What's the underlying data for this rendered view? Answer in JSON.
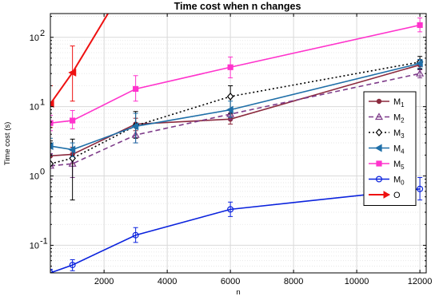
{
  "chart_data": {
    "type": "line",
    "title": "Time cost when n changes",
    "xlabel": "n",
    "ylabel": "Time cost (s)",
    "xlim": [
      300,
      12200
    ],
    "ylim": [
      0.04,
      220
    ],
    "yscale": "log",
    "grid": true,
    "legend_position": "right",
    "x_ticks": [
      "2000",
      "4000",
      "6000",
      "8000",
      "10000",
      "12000"
    ],
    "y_ticks": [
      {
        "base": "10",
        "exp": "-1"
      },
      {
        "base": "10",
        "exp": "0"
      },
      {
        "base": "10",
        "exp": "1"
      },
      {
        "base": "10",
        "exp": "2"
      }
    ],
    "series": [
      {
        "name": "M",
        "sub": "1",
        "color": "#8b2a3e",
        "dash": "",
        "marker": "dot",
        "x": [
          300,
          1000,
          3000,
          6000,
          12000
        ],
        "y": [
          1.95,
          2.05,
          5.6,
          6.6,
          40
        ],
        "err": [
          [
            1.4,
            2.6
          ],
          [
            1.5,
            2.6
          ],
          [
            4.5,
            6.8
          ],
          [
            5.6,
            7.6
          ],
          [
            34,
            47
          ]
        ]
      },
      {
        "name": "M",
        "sub": "2",
        "color": "#7e3c8a",
        "dash": "6,4",
        "marker": "triangle-up",
        "x": [
          300,
          1000,
          3000,
          6000,
          12000
        ],
        "y": [
          1.4,
          1.5,
          3.9,
          7.8,
          30
        ],
        "err": [
          [
            0.9,
            2.1
          ],
          [
            0.95,
            2.3
          ],
          [
            3.0,
            5.0
          ],
          [
            6.5,
            9.2
          ],
          [
            26,
            34
          ]
        ]
      },
      {
        "name": "M",
        "sub": "3",
        "color": "#000000",
        "dash": "2,3",
        "marker": "diamond",
        "x": [
          300,
          1000,
          3000,
          6000,
          12000
        ],
        "y": [
          1.5,
          1.8,
          5.3,
          14,
          44
        ],
        "err": [
          [
            0.5,
            3.2
          ],
          [
            0.45,
            3.4
          ],
          [
            3.5,
            8.5
          ],
          [
            8,
            20
          ],
          [
            35,
            53
          ]
        ]
      },
      {
        "name": "M",
        "sub": "4",
        "color": "#1f6fa8",
        "dash": "",
        "marker": "triangle-left",
        "x": [
          300,
          1000,
          3000,
          6000,
          12000
        ],
        "y": [
          2.7,
          2.4,
          5.2,
          9.0,
          42
        ],
        "err": [
          [
            2.0,
            3.5
          ],
          [
            1.9,
            3.0
          ],
          [
            3.0,
            8.0
          ],
          [
            7.0,
            12
          ],
          [
            36,
            48
          ]
        ]
      },
      {
        "name": "M",
        "sub": "5",
        "color": "#ff33cc",
        "dash": "",
        "marker": "square",
        "x": [
          300,
          1000,
          3000,
          6000,
          12000
        ],
        "y": [
          5.8,
          6.3,
          18,
          37,
          150
        ],
        "err": [
          [
            4.5,
            7.5
          ],
          [
            4.8,
            8.8
          ],
          [
            12,
            28
          ],
          [
            26,
            52
          ],
          [
            120,
            190
          ]
        ]
      },
      {
        "name": "M",
        "sub": "0",
        "color": "#0a22dd",
        "dash": "",
        "marker": "circle",
        "x": [
          300,
          1000,
          3000,
          6000,
          12000
        ],
        "y": [
          0.04,
          0.052,
          0.14,
          0.33,
          0.65
        ],
        "err": [
          [
            0.04,
            0.045
          ],
          [
            0.043,
            0.062
          ],
          [
            0.11,
            0.18
          ],
          [
            0.26,
            0.42
          ],
          [
            0.45,
            0.95
          ]
        ]
      },
      {
        "name": "O",
        "sub": "",
        "color": "#ee1111",
        "dash": "",
        "marker": "arrow-left",
        "x": [
          300,
          1000,
          2150
        ],
        "y": [
          11,
          31,
          230
        ],
        "err": [
          [
            5,
            20
          ],
          [
            12,
            75
          ],
          null
        ]
      }
    ]
  }
}
